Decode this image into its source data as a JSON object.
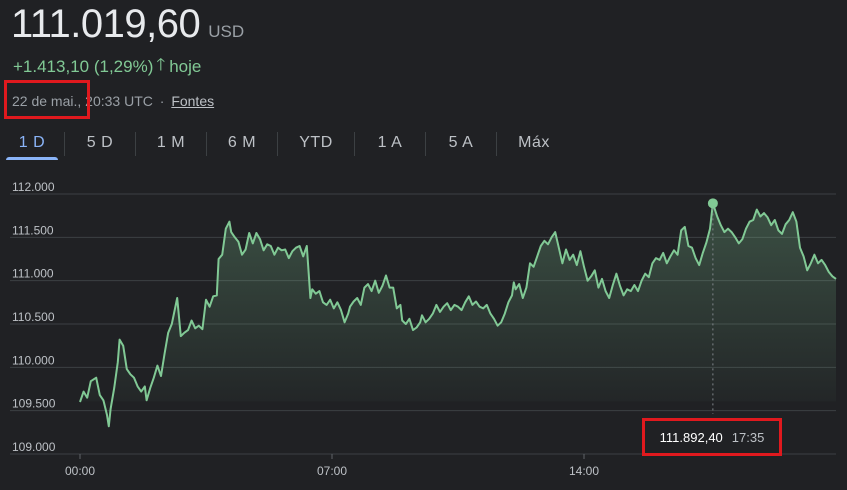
{
  "header": {
    "price": "111.019,60",
    "currency": "USD",
    "change": "+1.413,10 (1,29%)",
    "change_period": "hoje",
    "date": "22 de mai.,",
    "time": "20:33 UTC",
    "separator": "·",
    "sources_link": "Fontes"
  },
  "tabs": [
    {
      "label": "1 D",
      "active": true
    },
    {
      "label": "5 D",
      "active": false
    },
    {
      "label": "1 M",
      "active": false
    },
    {
      "label": "6 M",
      "active": false
    },
    {
      "label": "YTD",
      "active": false
    },
    {
      "label": "1 A",
      "active": false
    },
    {
      "label": "5 A",
      "active": false
    },
    {
      "label": "Máx",
      "active": false
    }
  ],
  "tooltip": {
    "value": "111.892,40",
    "time": "17:35"
  },
  "colors": {
    "line": "#81c995",
    "active_tab": "#8ab4f8",
    "highlight": "#e0191e",
    "grid": "#3c4043"
  },
  "chart_data": {
    "type": "line",
    "ylim": [
      109000,
      112000
    ],
    "y_ticks": [
      109000,
      109500,
      110000,
      110500,
      111000,
      111500,
      112000
    ],
    "y_tick_labels": [
      "109.000",
      "109.500",
      "110.000",
      "110.500",
      "111.000",
      "111.500",
      "112.000"
    ],
    "x_range_hours": [
      0,
      21
    ],
    "x_ticks": [
      0,
      7,
      14
    ],
    "x_tick_labels": [
      "00:00",
      "07:00",
      "14:00"
    ],
    "previous_close": 109606.5,
    "highlight_point": {
      "x": 17.58,
      "y": 111892.4
    },
    "series": [
      {
        "points": [
          [
            0.0,
            109600
          ],
          [
            0.1,
            109720
          ],
          [
            0.2,
            109650
          ],
          [
            0.3,
            109840
          ],
          [
            0.45,
            109880
          ],
          [
            0.55,
            109680
          ],
          [
            0.65,
            109620
          ],
          [
            0.75,
            109450
          ],
          [
            0.8,
            109320
          ],
          [
            0.85,
            109520
          ],
          [
            0.95,
            109760
          ],
          [
            1.05,
            110060
          ],
          [
            1.1,
            110320
          ],
          [
            1.2,
            110250
          ],
          [
            1.3,
            109980
          ],
          [
            1.4,
            109920
          ],
          [
            1.5,
            109880
          ],
          [
            1.6,
            109780
          ],
          [
            1.7,
            109720
          ],
          [
            1.8,
            109780
          ],
          [
            1.85,
            109620
          ],
          [
            1.95,
            109760
          ],
          [
            2.05,
            109880
          ],
          [
            2.15,
            110020
          ],
          [
            2.25,
            109900
          ],
          [
            2.35,
            110160
          ],
          [
            2.45,
            110400
          ],
          [
            2.55,
            110500
          ],
          [
            2.7,
            110800
          ],
          [
            2.8,
            110360
          ],
          [
            2.9,
            110400
          ],
          [
            3.0,
            110430
          ],
          [
            3.1,
            110540
          ],
          [
            3.2,
            110450
          ],
          [
            3.3,
            110480
          ],
          [
            3.4,
            110440
          ],
          [
            3.5,
            110780
          ],
          [
            3.6,
            110700
          ],
          [
            3.7,
            110820
          ],
          [
            3.8,
            110830
          ],
          [
            3.85,
            111250
          ],
          [
            3.95,
            111300
          ],
          [
            4.05,
            111600
          ],
          [
            4.15,
            111680
          ],
          [
            4.2,
            111560
          ],
          [
            4.3,
            111500
          ],
          [
            4.4,
            111450
          ],
          [
            4.5,
            111300
          ],
          [
            4.6,
            111360
          ],
          [
            4.7,
            111550
          ],
          [
            4.8,
            111430
          ],
          [
            4.9,
            111550
          ],
          [
            5.0,
            111480
          ],
          [
            5.1,
            111350
          ],
          [
            5.2,
            111420
          ],
          [
            5.3,
            111400
          ],
          [
            5.4,
            111300
          ],
          [
            5.5,
            111380
          ],
          [
            5.6,
            111350
          ],
          [
            5.7,
            111360
          ],
          [
            5.8,
            111260
          ],
          [
            5.9,
            111340
          ],
          [
            6.0,
            111380
          ],
          [
            6.1,
            111400
          ],
          [
            6.2,
            111280
          ],
          [
            6.3,
            111400
          ],
          [
            6.4,
            110800
          ],
          [
            6.45,
            110900
          ],
          [
            6.55,
            110850
          ],
          [
            6.65,
            110880
          ],
          [
            6.75,
            110750
          ],
          [
            6.85,
            110720
          ],
          [
            6.95,
            110780
          ],
          [
            7.05,
            110680
          ],
          [
            7.15,
            110750
          ],
          [
            7.25,
            110660
          ],
          [
            7.35,
            110520
          ],
          [
            7.45,
            110620
          ],
          [
            7.5,
            110700
          ],
          [
            7.6,
            110760
          ],
          [
            7.7,
            110800
          ],
          [
            7.8,
            110720
          ],
          [
            7.9,
            110920
          ],
          [
            8.0,
            110960
          ],
          [
            8.1,
            110880
          ],
          [
            8.2,
            111000
          ],
          [
            8.3,
            110860
          ],
          [
            8.4,
            110940
          ],
          [
            8.5,
            111060
          ],
          [
            8.6,
            110920
          ],
          [
            8.7,
            110920
          ],
          [
            8.8,
            110680
          ],
          [
            8.9,
            110720
          ],
          [
            8.95,
            110540
          ],
          [
            9.05,
            110500
          ],
          [
            9.15,
            110560
          ],
          [
            9.25,
            110430
          ],
          [
            9.35,
            110460
          ],
          [
            9.45,
            110520
          ],
          [
            9.5,
            110600
          ],
          [
            9.6,
            110520
          ],
          [
            9.7,
            110560
          ],
          [
            9.8,
            110620
          ],
          [
            9.9,
            110720
          ],
          [
            10.0,
            110640
          ],
          [
            10.1,
            110700
          ],
          [
            10.2,
            110740
          ],
          [
            10.3,
            110660
          ],
          [
            10.4,
            110720
          ],
          [
            10.5,
            110700
          ],
          [
            10.6,
            110660
          ],
          [
            10.7,
            110750
          ],
          [
            10.8,
            110820
          ],
          [
            10.9,
            110720
          ],
          [
            11.0,
            110760
          ],
          [
            11.1,
            110700
          ],
          [
            11.2,
            110680
          ],
          [
            11.3,
            110720
          ],
          [
            11.4,
            110620
          ],
          [
            11.5,
            110560
          ],
          [
            11.6,
            110480
          ],
          [
            11.7,
            110520
          ],
          [
            11.8,
            110620
          ],
          [
            11.9,
            110750
          ],
          [
            12.0,
            110830
          ],
          [
            12.05,
            110980
          ],
          [
            12.1,
            110900
          ],
          [
            12.2,
            110960
          ],
          [
            12.3,
            110800
          ],
          [
            12.4,
            110920
          ],
          [
            12.5,
            111200
          ],
          [
            12.6,
            111160
          ],
          [
            12.7,
            111280
          ],
          [
            12.8,
            111400
          ],
          [
            12.9,
            111460
          ],
          [
            13.0,
            111420
          ],
          [
            13.1,
            111500
          ],
          [
            13.2,
            111560
          ],
          [
            13.3,
            111380
          ],
          [
            13.4,
            111200
          ],
          [
            13.5,
            111360
          ],
          [
            13.6,
            111240
          ],
          [
            13.7,
            111300
          ],
          [
            13.8,
            111180
          ],
          [
            13.9,
            111340
          ],
          [
            14.0,
            111160
          ],
          [
            14.1,
            111000
          ],
          [
            14.2,
            111050
          ],
          [
            14.3,
            111120
          ],
          [
            14.4,
            110920
          ],
          [
            14.5,
            111020
          ],
          [
            14.6,
            110880
          ],
          [
            14.7,
            110800
          ],
          [
            14.8,
            110950
          ],
          [
            14.9,
            111080
          ],
          [
            15.0,
            110940
          ],
          [
            15.1,
            110830
          ],
          [
            15.2,
            110900
          ],
          [
            15.3,
            110880
          ],
          [
            15.4,
            110950
          ],
          [
            15.5,
            110880
          ],
          [
            15.6,
            111000
          ],
          [
            15.7,
            111080
          ],
          [
            15.8,
            111040
          ],
          [
            15.9,
            111200
          ],
          [
            16.0,
            111260
          ],
          [
            16.1,
            111240
          ],
          [
            16.2,
            111320
          ],
          [
            16.3,
            111200
          ],
          [
            16.4,
            111280
          ],
          [
            16.5,
            111350
          ],
          [
            16.6,
            111300
          ],
          [
            16.7,
            111580
          ],
          [
            16.8,
            111620
          ],
          [
            16.9,
            111400
          ],
          [
            17.0,
            111380
          ],
          [
            17.1,
            111260
          ],
          [
            17.2,
            111180
          ],
          [
            17.3,
            111320
          ],
          [
            17.4,
            111440
          ],
          [
            17.5,
            111600
          ],
          [
            17.58,
            111892
          ],
          [
            17.7,
            111740
          ],
          [
            17.8,
            111640
          ],
          [
            17.9,
            111560
          ],
          [
            18.0,
            111600
          ],
          [
            18.1,
            111560
          ],
          [
            18.2,
            111500
          ],
          [
            18.3,
            111430
          ],
          [
            18.4,
            111480
          ],
          [
            18.5,
            111600
          ],
          [
            18.6,
            111680
          ],
          [
            18.7,
            111700
          ],
          [
            18.8,
            111820
          ],
          [
            18.9,
            111740
          ],
          [
            19.0,
            111780
          ],
          [
            19.1,
            111730
          ],
          [
            19.2,
            111640
          ],
          [
            19.3,
            111700
          ],
          [
            19.4,
            111580
          ],
          [
            19.5,
            111540
          ],
          [
            19.6,
            111650
          ],
          [
            19.7,
            111700
          ],
          [
            19.8,
            111790
          ],
          [
            19.9,
            111680
          ],
          [
            20.0,
            111380
          ],
          [
            20.1,
            111280
          ],
          [
            20.2,
            111120
          ],
          [
            20.3,
            111200
          ],
          [
            20.4,
            111300
          ],
          [
            20.5,
            111200
          ],
          [
            20.6,
            111240
          ],
          [
            20.7,
            111180
          ],
          [
            20.8,
            111100
          ],
          [
            20.9,
            111050
          ],
          [
            21.0,
            111020
          ]
        ]
      }
    ]
  }
}
